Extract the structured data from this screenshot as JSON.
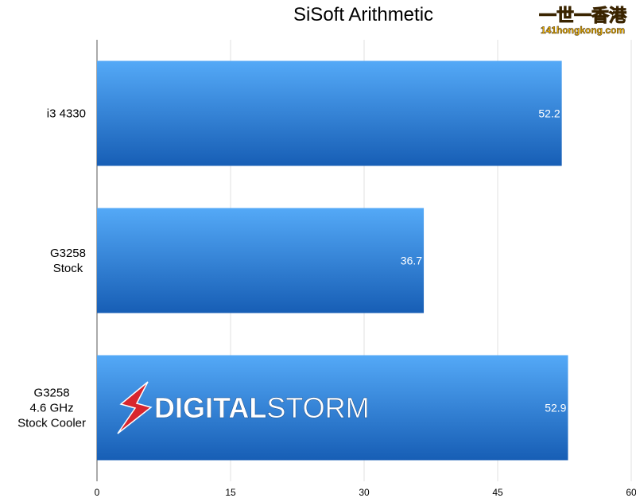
{
  "chart_data": {
    "type": "bar",
    "orientation": "horizontal",
    "title": "SiSoft Arithmetic",
    "categories": [
      "i3 4330",
      "G3258\nStock",
      "G3258\n4.6 GHz\nStock Cooler"
    ],
    "values": [
      52.2,
      36.7,
      52.9
    ],
    "color": "#2f7fd6",
    "xlim": [
      0,
      60
    ],
    "xticks": [
      0,
      15,
      30,
      45,
      60
    ],
    "grid": true
  },
  "watermark": {
    "site_name": "一世一香港",
    "site_url": "141hongkong.com"
  },
  "logo": {
    "text_bold": "DIGITAL",
    "text_light": "STORM"
  }
}
